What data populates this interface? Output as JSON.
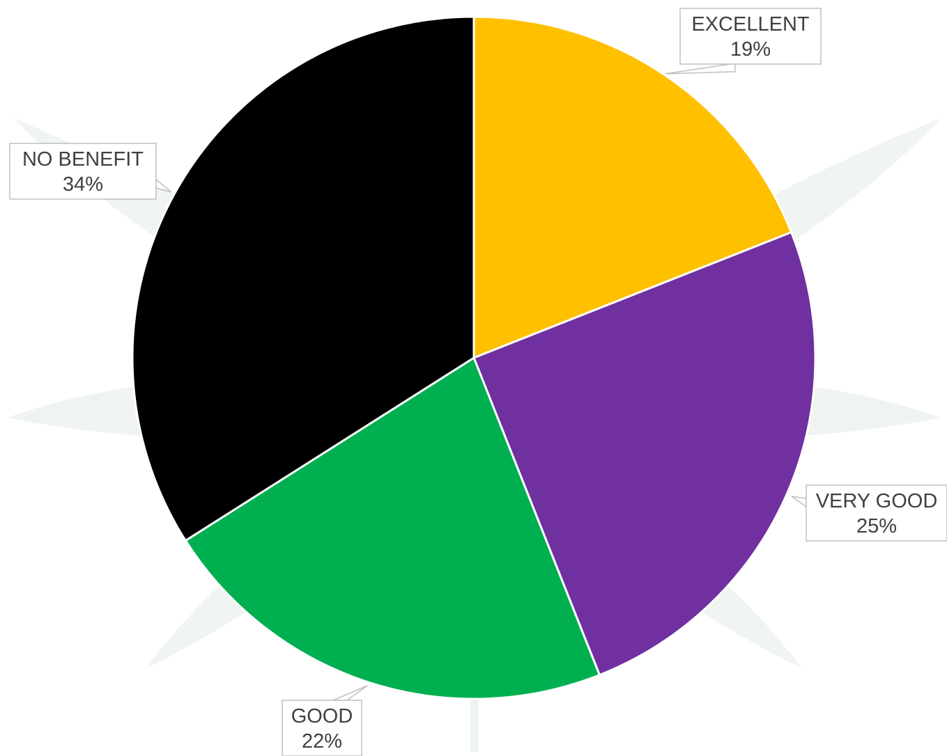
{
  "chart_data": {
    "type": "pie",
    "title": "",
    "start_angle_deg": 0,
    "direction": "clockwise",
    "slices": [
      {
        "label": "EXCELLENT",
        "value": 19,
        "display": "19%",
        "color": "#FFC000"
      },
      {
        "label": "VERY GOOD",
        "value": 25,
        "display": "25%",
        "color": "#7030A0"
      },
      {
        "label": "GOOD",
        "value": 22,
        "display": "22%",
        "color": "#00B050"
      },
      {
        "label": "NO BENEFIT",
        "value": 34,
        "display": "34%",
        "color": "#000000"
      }
    ],
    "slice_border_color": "#FFFFFF",
    "data_label_style": "callout",
    "data_label_text_color": "#404040",
    "legend": "none",
    "background_watermark": "faint leaf watermark"
  }
}
